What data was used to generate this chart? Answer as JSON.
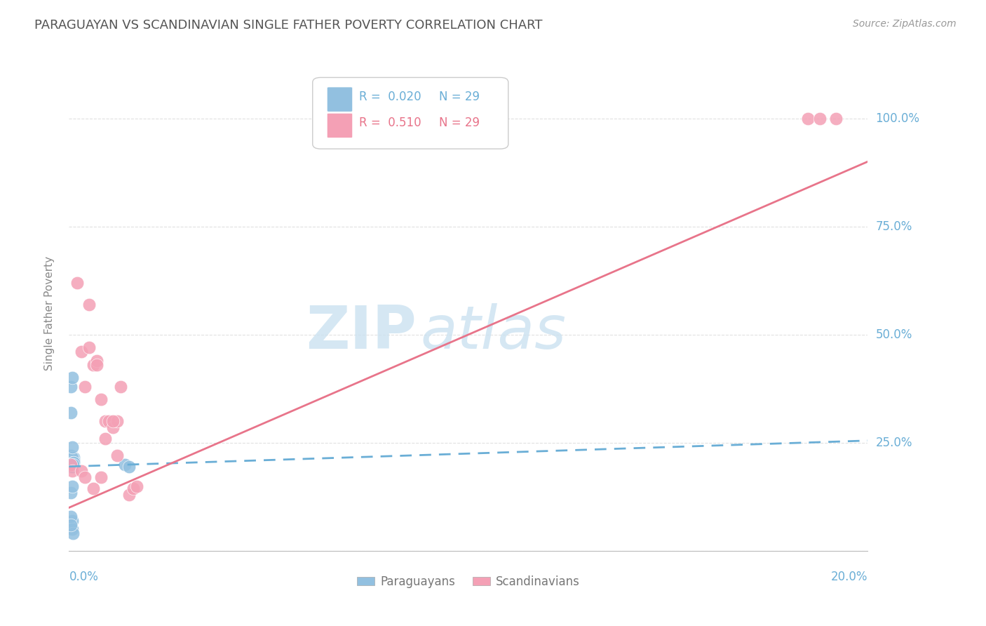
{
  "title": "PARAGUAYAN VS SCANDINAVIAN SINGLE FATHER POVERTY CORRELATION CHART",
  "source": "Source: ZipAtlas.com",
  "ylabel": "Single Father Poverty",
  "blue_color": "#92C0E0",
  "pink_color": "#F4A0B5",
  "blue_line_color": "#6AAED6",
  "pink_line_color": "#E8748A",
  "grid_color": "#DDDDDD",
  "axis_label_color": "#6AAED6",
  "paraguayans_x": [
    0.0005,
    0.001,
    0.0005,
    0.0008,
    0.001,
    0.0012,
    0.0008,
    0.001,
    0.0005,
    0.0008,
    0.0012,
    0.001,
    0.0008,
    0.0005,
    0.0008,
    0.001,
    0.0012,
    0.0005,
    0.0008,
    0.001,
    0.014,
    0.015,
    0.0005,
    0.0008,
    0.0005,
    0.0008,
    0.001,
    0.0005,
    0.0008
  ],
  "paraguayans_y": [
    0.215,
    0.205,
    0.195,
    0.195,
    0.215,
    0.215,
    0.195,
    0.2,
    0.22,
    0.205,
    0.21,
    0.2,
    0.215,
    0.38,
    0.4,
    0.205,
    0.205,
    0.135,
    0.07,
    0.2,
    0.2,
    0.195,
    0.32,
    0.24,
    0.08,
    0.05,
    0.04,
    0.06,
    0.15
  ],
  "scandinavians_x": [
    0.0005,
    0.0008,
    0.002,
    0.003,
    0.005,
    0.006,
    0.007,
    0.008,
    0.009,
    0.01,
    0.011,
    0.012,
    0.005,
    0.007,
    0.009,
    0.011,
    0.004,
    0.008,
    0.003,
    0.015,
    0.016,
    0.004,
    0.012,
    0.006,
    0.185,
    0.188,
    0.192,
    0.017,
    0.013
  ],
  "scandinavians_y": [
    0.2,
    0.185,
    0.62,
    0.46,
    0.47,
    0.43,
    0.44,
    0.35,
    0.3,
    0.3,
    0.285,
    0.3,
    0.57,
    0.43,
    0.26,
    0.3,
    0.38,
    0.17,
    0.185,
    0.13,
    0.145,
    0.17,
    0.22,
    0.145,
    1.0,
    1.0,
    1.0,
    0.15,
    0.38
  ],
  "pink_trend_x0": 0.0,
  "pink_trend_y0": 0.1,
  "pink_trend_x1": 0.2,
  "pink_trend_y1": 0.9,
  "blue_trend_x0": 0.0,
  "blue_trend_y0": 0.195,
  "blue_trend_x1": 0.2,
  "blue_trend_y1": 0.255,
  "xlim": [
    0.0,
    0.2
  ],
  "ylim": [
    0.0,
    1.1
  ]
}
